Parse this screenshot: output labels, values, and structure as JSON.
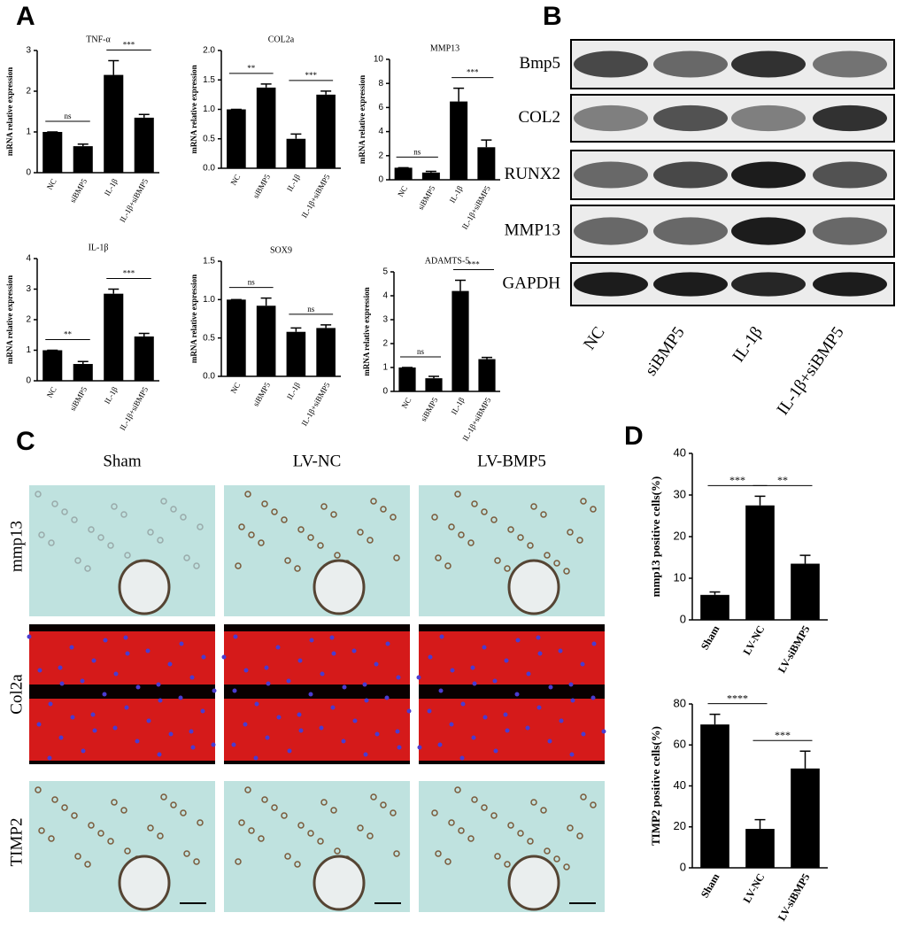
{
  "panel_labels": [
    "A",
    "B",
    "C",
    "D"
  ],
  "western_blot": {
    "proteins": [
      "Bmp5",
      "COL2",
      "RUNX2",
      "MMP13",
      "GAPDH"
    ],
    "lanes": [
      "NC",
      "siBMP5",
      "IL-1β",
      "IL-1β+siBMP5"
    ]
  },
  "histology": {
    "columns": [
      "Sham",
      "LV-NC",
      "LV-BMP5"
    ],
    "rows": [
      "mmp13",
      "Col2a",
      "TIMP2"
    ]
  },
  "chart_data": [
    {
      "type": "bar",
      "title": "TNF-α",
      "ylabel": "mRNA relative expression",
      "categories": [
        "NC",
        "siBMP5",
        "IL-1β",
        "IL-1β+siBMP5"
      ],
      "values": [
        1.0,
        0.65,
        2.4,
        1.35
      ],
      "errors": [
        0,
        0.05,
        0.35,
        0.08
      ],
      "color": "#000000",
      "ylim": [
        0,
        3
      ],
      "yticks": [
        0,
        1,
        2,
        3
      ],
      "annotations": [
        {
          "label": "ns",
          "between": [
            0,
            1
          ]
        },
        {
          "label": "***",
          "between": [
            2,
            3
          ]
        }
      ]
    },
    {
      "type": "bar",
      "title": "COL2a",
      "ylabel": "mRNA relative expression",
      "categories": [
        "NC",
        "siBMP5",
        "IL-1β",
        "IL-1β+siBMP5"
      ],
      "values": [
        1.0,
        1.37,
        0.5,
        1.25
      ],
      "errors": [
        0,
        0.06,
        0.08,
        0.06
      ],
      "color": "#000000",
      "ylim": [
        0,
        2
      ],
      "yticks": [
        {
          "value": 0,
          "label": "0.0"
        },
        0.5,
        {
          "value": 1,
          "label": "1.0"
        },
        1.5,
        {
          "value": 2,
          "label": "2.0"
        }
      ],
      "annotations": [
        {
          "label": "**",
          "between": [
            0,
            1
          ]
        },
        {
          "label": "***",
          "between": [
            2,
            3
          ]
        }
      ]
    },
    {
      "type": "bar",
      "title": "MMP13",
      "ylabel": "mRNA relative expression",
      "categories": [
        "NC",
        "siBMP5",
        "IL-1β",
        "IL-1β+siBMP5"
      ],
      "values": [
        1.0,
        0.6,
        6.5,
        2.7
      ],
      "errors": [
        0,
        0.1,
        1.1,
        0.6
      ],
      "color": "#000000",
      "ylim": [
        0,
        10
      ],
      "yticks": [
        0,
        2,
        4,
        6,
        8,
        10
      ],
      "annotations": [
        {
          "label": "ns",
          "between": [
            0,
            1
          ]
        },
        {
          "label": "***",
          "between": [
            2,
            3
          ]
        }
      ]
    },
    {
      "type": "bar",
      "title": "IL-1β",
      "ylabel": "mRNA relative expression",
      "categories": [
        "NC",
        "siBMP5",
        "IL-1β",
        "IL-1β+siBMP5"
      ],
      "values": [
        1.0,
        0.55,
        2.85,
        1.45
      ],
      "errors": [
        0,
        0.08,
        0.15,
        0.1
      ],
      "color": "#000000",
      "ylim": [
        0,
        4
      ],
      "yticks": [
        0,
        1,
        2,
        3,
        4
      ],
      "annotations": [
        {
          "label": "**",
          "between": [
            0,
            1
          ]
        },
        {
          "label": "***",
          "between": [
            2,
            3
          ]
        }
      ]
    },
    {
      "type": "bar",
      "title": "SOX9",
      "ylabel": "mRNA relative expression",
      "categories": [
        "NC",
        "siBMP5",
        "IL-1β",
        "IL-1β+siBMP5"
      ],
      "values": [
        1.0,
        0.92,
        0.58,
        0.63
      ],
      "errors": [
        0,
        0.1,
        0.05,
        0.04
      ],
      "color": "#000000",
      "ylim": [
        0,
        1.5
      ],
      "yticks": [
        {
          "value": 0,
          "label": "0.0"
        },
        0.5,
        {
          "value": 1,
          "label": "1.0"
        },
        1.5
      ],
      "annotations": [
        {
          "label": "ns",
          "between": [
            0,
            1
          ]
        },
        {
          "label": "ns",
          "between": [
            2,
            3
          ]
        }
      ]
    },
    {
      "type": "bar",
      "title": "ADAMTS-5",
      "ylabel": "mRNA relative expression",
      "categories": [
        "NC",
        "siBMP5",
        "IL-1β",
        "IL-1β+siBMP5"
      ],
      "values": [
        1.0,
        0.55,
        4.2,
        1.35
      ],
      "errors": [
        0,
        0.08,
        0.45,
        0.07
      ],
      "color": "#000000",
      "ylim": [
        0,
        5
      ],
      "yticks": [
        0,
        1,
        2,
        3,
        4,
        5
      ],
      "annotations": [
        {
          "label": "ns",
          "between": [
            0,
            1
          ]
        },
        {
          "label": "***",
          "between": [
            2,
            3
          ]
        }
      ]
    },
    {
      "type": "bar",
      "ylabel": "mmp13 positive cells(%)",
      "categories": [
        "Sham",
        "LV-NC",
        "LV-siBMP5"
      ],
      "values": [
        6,
        27.5,
        13.5
      ],
      "errors": [
        0.7,
        2.2,
        2.0
      ],
      "color": "#000000",
      "ylim": [
        0,
        40
      ],
      "yticks": [
        0,
        10,
        20,
        30,
        40
      ],
      "annotations": [
        {
          "label": "***",
          "between": [
            0,
            1
          ]
        },
        {
          "label": "**",
          "between": [
            1,
            2
          ]
        }
      ]
    },
    {
      "type": "bar",
      "ylabel": "TIMP2 positive cells(%)",
      "categories": [
        "Sham",
        "LV-NC",
        "LV-siBMP5"
      ],
      "values": [
        70,
        19,
        48.5
      ],
      "errors": [
        5,
        4.5,
        8.5
      ],
      "color": "#000000",
      "ylim": [
        0,
        80
      ],
      "yticks": [
        0,
        20,
        40,
        60,
        80
      ],
      "annotations": [
        {
          "label": "****",
          "between": [
            0,
            1
          ]
        },
        {
          "label": "***",
          "between": [
            1,
            2
          ]
        }
      ]
    }
  ]
}
